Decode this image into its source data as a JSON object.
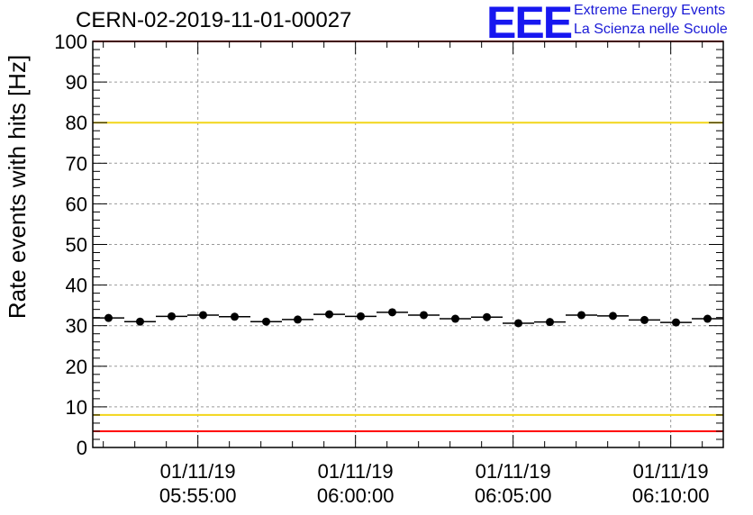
{
  "title": "CERN-02-2019-11-01-00027",
  "logo": {
    "mark": "EEE",
    "line1": "Extreme Energy Events",
    "line2": "La Scienza nelle Scuole"
  },
  "colors": {
    "upper_limit_red": "#ff0000",
    "warning_yellow": "#f2d51a",
    "points": "#000000",
    "logo_blue": "#1a1ad6"
  },
  "chart_data": {
    "type": "scatter",
    "ylabel": "Rate events with hits [Hz]",
    "xlabel": "",
    "ylim": [
      0,
      100
    ],
    "yticks": [
      "0",
      "10",
      "20",
      "30",
      "40",
      "50",
      "60",
      "70",
      "80",
      "90",
      "100"
    ],
    "xlim": [
      "2019-11-01 05:51:40",
      "2019-11-01 06:11:40"
    ],
    "xticks": [
      {
        "date": "01/11/19",
        "time": "05:55:00"
      },
      {
        "date": "01/11/19",
        "time": "06:00:00"
      },
      {
        "date": "01/11/19",
        "time": "06:05:00"
      },
      {
        "date": "01/11/19",
        "time": "06:10:00"
      }
    ],
    "grid": true,
    "bin_width_seconds": 60,
    "x": [
      "05:52:10",
      "05:53:10",
      "05:54:10",
      "05:55:10",
      "05:56:10",
      "05:57:10",
      "05:58:10",
      "05:59:10",
      "06:00:10",
      "06:01:10",
      "06:02:10",
      "06:03:10",
      "06:04:10",
      "06:05:10",
      "06:06:10",
      "06:07:10",
      "06:08:10",
      "06:09:10",
      "06:10:10",
      "06:11:10"
    ],
    "y": [
      31.9,
      31.0,
      32.3,
      32.6,
      32.2,
      31.0,
      31.5,
      32.8,
      32.3,
      33.3,
      32.6,
      31.7,
      32.1,
      30.6,
      30.9,
      32.6,
      32.4,
      31.4,
      30.8,
      31.7
    ],
    "hlines": [
      {
        "y": 100,
        "color": "red"
      },
      {
        "y": 80,
        "color": "yellow"
      },
      {
        "y": 8,
        "color": "yellow"
      },
      {
        "y": 4,
        "color": "red"
      }
    ]
  }
}
